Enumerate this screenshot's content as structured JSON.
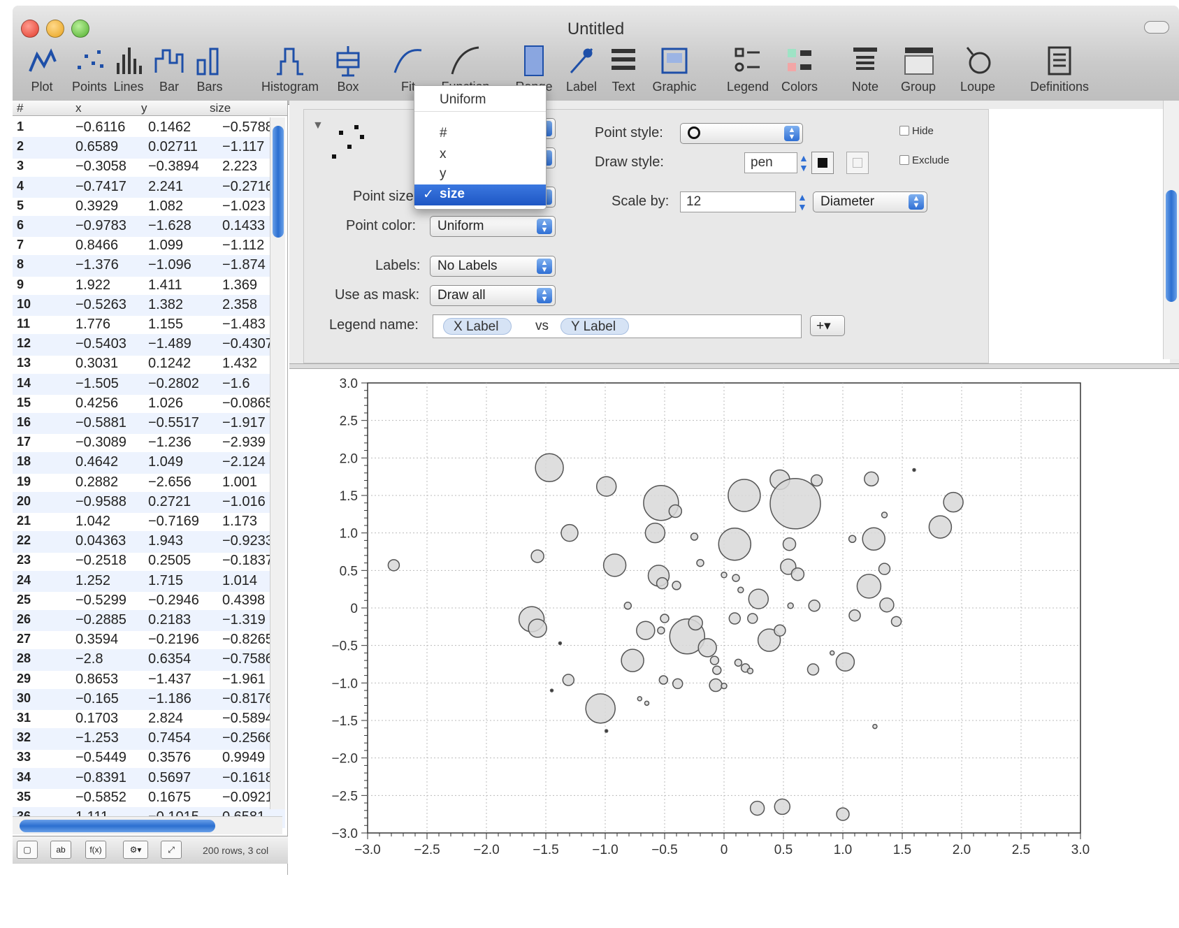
{
  "window": {
    "title": "Untitled"
  },
  "toolbar": {
    "items": [
      {
        "label": "Plot",
        "icon": "plot-icon"
      },
      {
        "label": "Points",
        "icon": "points-icon"
      },
      {
        "label": "Lines",
        "icon": "lines-icon"
      },
      {
        "label": "Bar",
        "icon": "bar-icon"
      },
      {
        "label": "Bars",
        "icon": "bars-icon"
      },
      {
        "label": "Histogram",
        "icon": "histogram-icon"
      },
      {
        "label": "Box",
        "icon": "box-icon"
      },
      {
        "label": "Fit",
        "icon": "fit-icon"
      },
      {
        "label": "Function",
        "icon": "function-icon"
      },
      {
        "label": "Range",
        "icon": "range-icon"
      },
      {
        "label": "Label",
        "icon": "label-icon"
      },
      {
        "label": "Text",
        "icon": "text-icon"
      },
      {
        "label": "Graphic",
        "icon": "graphic-icon"
      },
      {
        "label": "Legend",
        "icon": "legend-icon"
      },
      {
        "label": "Colors",
        "icon": "colors-icon"
      },
      {
        "label": "Note",
        "icon": "note-icon"
      },
      {
        "label": "Group",
        "icon": "group-icon"
      },
      {
        "label": "Loupe",
        "icon": "loupe-icon"
      },
      {
        "label": "Definitions",
        "icon": "definitions-icon"
      }
    ]
  },
  "table": {
    "columns": [
      "#",
      "x",
      "y",
      "size"
    ],
    "rows": [
      [
        "1",
        "-0.6116",
        "0.1462",
        "-0.5788"
      ],
      [
        "2",
        "0.6589",
        "0.02711",
        "-1.117"
      ],
      [
        "3",
        "-0.3058",
        "-0.3894",
        "2.223"
      ],
      [
        "4",
        "-0.7417",
        "2.241",
        "-0.2716"
      ],
      [
        "5",
        "0.3929",
        "1.082",
        "-1.023"
      ],
      [
        "6",
        "-0.9783",
        "-1.628",
        "0.1433"
      ],
      [
        "7",
        "0.8466",
        "1.099",
        "-1.112"
      ],
      [
        "8",
        "-1.376",
        "-1.096",
        "-1.874"
      ],
      [
        "9",
        "1.922",
        "1.411",
        "1.369"
      ],
      [
        "10",
        "-0.5263",
        "1.382",
        "2.358"
      ],
      [
        "11",
        "1.776",
        "1.155",
        "-1.483"
      ],
      [
        "12",
        "-0.5403",
        "-1.489",
        "-0.4307"
      ],
      [
        "13",
        "0.3031",
        "0.1242",
        "1.432"
      ],
      [
        "14",
        "-1.505",
        "-0.2802",
        "-1.6"
      ],
      [
        "15",
        "0.4256",
        "1.026",
        "-0.0865"
      ],
      [
        "16",
        "-0.5881",
        "-0.5517",
        "-1.917"
      ],
      [
        "17",
        "-0.3089",
        "-1.236",
        "-2.939"
      ],
      [
        "18",
        "0.4642",
        "1.049",
        "-2.124"
      ],
      [
        "19",
        "0.2882",
        "-2.656",
        "1.001"
      ],
      [
        "20",
        "-0.9588",
        "0.2721",
        "-1.016"
      ],
      [
        "21",
        "1.042",
        "-0.7169",
        "1.173"
      ],
      [
        "22",
        "0.04363",
        "1.943",
        "-0.9233"
      ],
      [
        "23",
        "-0.2518",
        "0.2505",
        "-0.1837"
      ],
      [
        "24",
        "1.252",
        "1.715",
        "1.014"
      ],
      [
        "25",
        "-0.5299",
        "-0.2946",
        "0.4398"
      ],
      [
        "26",
        "-0.2885",
        "0.2183",
        "-1.319"
      ],
      [
        "27",
        "0.3594",
        "-0.2196",
        "-0.8265"
      ],
      [
        "28",
        "-2.8",
        "0.6354",
        "-0.7586"
      ],
      [
        "29",
        "0.8653",
        "-1.437",
        "-1.961"
      ],
      [
        "30",
        "-0.165",
        "-1.186",
        "-0.8176"
      ],
      [
        "31",
        "0.1703",
        "2.824",
        "-0.5894"
      ],
      [
        "32",
        "-1.253",
        "0.7454",
        "-0.2566"
      ],
      [
        "33",
        "-0.5449",
        "0.3576",
        "0.9949"
      ],
      [
        "34",
        "-0.8391",
        "0.5697",
        "-0.1618"
      ],
      [
        "35",
        "-0.5852",
        "0.1675",
        "-0.0921"
      ],
      [
        "36",
        "1.111",
        "-0.1015",
        "0.6581"
      ]
    ],
    "footer": "200 rows, 3 col"
  },
  "inspector": {
    "point_style_label": "Point style:",
    "draw_style_label": "Draw style:",
    "draw_style_value": "pen",
    "hide_label": "Hide",
    "exclude_label": "Exclude",
    "point_size_label": "Point size",
    "scale_by_label": "Scale by:",
    "scale_by_value": "12",
    "scale_mode": "Diameter",
    "point_color_label": "Point color:",
    "point_color_value": "Uniform",
    "labels_label": "Labels:",
    "labels_value": "No Labels",
    "mask_label": "Use as mask:",
    "mask_value": "Draw all",
    "legend_label": "Legend name:",
    "legend_token_x": "X Label",
    "legend_vs": "vs",
    "legend_token_y": "Y Label",
    "add_button": "+▾"
  },
  "dropdown": {
    "options": [
      "Uniform",
      "#",
      "x",
      "y",
      "size"
    ],
    "selected": "size",
    "check": "✓"
  },
  "colors": {
    "accent": "#2f6fd4",
    "marker_fill": "#d8d8d8",
    "marker_stroke": "#555555"
  },
  "chart_data": {
    "type": "scatter",
    "xlim": [
      -3.0,
      3.0
    ],
    "ylim": [
      -3.0,
      3.0
    ],
    "xticks": [
      "-3.0",
      "-2.5",
      "-2.0",
      "-1.5",
      "-1.0",
      "-0.5",
      "0",
      "0.5",
      "1.0",
      "1.5",
      "2.0",
      "2.5",
      "3.0"
    ],
    "yticks": [
      "3.0",
      "2.5",
      "2.0",
      "1.5",
      "1.0",
      "0.5",
      "0",
      "-0.5",
      "-1.0",
      "-1.5",
      "-2.0",
      "-2.5",
      "-3.0"
    ],
    "grid": true,
    "size_variable": "size",
    "points": [
      {
        "x": -1.47,
        "y": 1.87,
        "r": 20
      },
      {
        "x": -0.99,
        "y": 1.62,
        "r": 14
      },
      {
        "x": -0.53,
        "y": 1.4,
        "r": 25
      },
      {
        "x": -0.41,
        "y": 1.29,
        "r": 9
      },
      {
        "x": 0.17,
        "y": 1.5,
        "r": 23
      },
      {
        "x": 0.47,
        "y": 1.71,
        "r": 14
      },
      {
        "x": 0.6,
        "y": 1.39,
        "r": 36
      },
      {
        "x": 0.78,
        "y": 1.7,
        "r": 8
      },
      {
        "x": 1.24,
        "y": 1.72,
        "r": 10
      },
      {
        "x": 1.6,
        "y": 1.84,
        "r": 2
      },
      {
        "x": 1.93,
        "y": 1.41,
        "r": 14
      },
      {
        "x": 1.82,
        "y": 1.08,
        "r": 16
      },
      {
        "x": 1.35,
        "y": 1.24,
        "r": 4
      },
      {
        "x": 1.26,
        "y": 0.92,
        "r": 16
      },
      {
        "x": 1.08,
        "y": 0.92,
        "r": 5
      },
      {
        "x": 1.35,
        "y": 0.52,
        "r": 8
      },
      {
        "x": 1.22,
        "y": 0.29,
        "r": 17
      },
      {
        "x": 1.37,
        "y": 0.04,
        "r": 10
      },
      {
        "x": 1.45,
        "y": -0.18,
        "r": 7
      },
      {
        "x": 1.1,
        "y": -0.1,
        "r": 8
      },
      {
        "x": 1.02,
        "y": -0.72,
        "r": 13
      },
      {
        "x": 0.91,
        "y": -0.6,
        "r": 3
      },
      {
        "x": 0.76,
        "y": 0.03,
        "r": 8
      },
      {
        "x": 0.56,
        "y": 0.03,
        "r": 4
      },
      {
        "x": 0.55,
        "y": 0.85,
        "r": 9
      },
      {
        "x": 0.54,
        "y": 0.55,
        "r": 11
      },
      {
        "x": 0.62,
        "y": 0.45,
        "r": 9
      },
      {
        "x": 0.09,
        "y": 0.85,
        "r": 23
      },
      {
        "x": -0.25,
        "y": 0.95,
        "r": 5
      },
      {
        "x": -0.58,
        "y": 1.0,
        "r": 14
      },
      {
        "x": -1.3,
        "y": 1.0,
        "r": 12
      },
      {
        "x": -1.57,
        "y": 0.69,
        "r": 9
      },
      {
        "x": -2.78,
        "y": 0.57,
        "r": 8
      },
      {
        "x": -0.92,
        "y": 0.57,
        "r": 16
      },
      {
        "x": -0.55,
        "y": 0.43,
        "r": 15
      },
      {
        "x": -0.52,
        "y": 0.33,
        "r": 8
      },
      {
        "x": -0.4,
        "y": 0.3,
        "r": 6
      },
      {
        "x": -0.2,
        "y": 0.6,
        "r": 5
      },
      {
        "x": 0.0,
        "y": 0.44,
        "r": 4
      },
      {
        "x": 0.1,
        "y": 0.4,
        "r": 5
      },
      {
        "x": 0.14,
        "y": 0.24,
        "r": 4
      },
      {
        "x": 0.29,
        "y": 0.12,
        "r": 14
      },
      {
        "x": -1.62,
        "y": -0.15,
        "r": 18
      },
      {
        "x": -1.57,
        "y": -0.27,
        "r": 13
      },
      {
        "x": -0.81,
        "y": 0.03,
        "r": 5
      },
      {
        "x": -0.66,
        "y": -0.3,
        "r": 13
      },
      {
        "x": -0.5,
        "y": -0.14,
        "r": 6
      },
      {
        "x": -0.53,
        "y": -0.3,
        "r": 5
      },
      {
        "x": -0.31,
        "y": -0.38,
        "r": 25
      },
      {
        "x": -0.24,
        "y": -0.2,
        "r": 10
      },
      {
        "x": -0.14,
        "y": -0.53,
        "r": 13
      },
      {
        "x": -0.08,
        "y": -0.7,
        "r": 6
      },
      {
        "x": -0.06,
        "y": -0.83,
        "r": 6
      },
      {
        "x": 0.09,
        "y": -0.14,
        "r": 8
      },
      {
        "x": 0.24,
        "y": -0.14,
        "r": 7
      },
      {
        "x": 0.38,
        "y": -0.43,
        "r": 16
      },
      {
        "x": 0.47,
        "y": -0.3,
        "r": 8
      },
      {
        "x": 0.12,
        "y": -0.73,
        "r": 5
      },
      {
        "x": 0.18,
        "y": -0.8,
        "r": 6
      },
      {
        "x": 0.22,
        "y": -0.84,
        "r": 4
      },
      {
        "x": -0.07,
        "y": -1.03,
        "r": 9
      },
      {
        "x": 0.0,
        "y": -1.04,
        "r": 4
      },
      {
        "x": -0.39,
        "y": -1.01,
        "r": 7
      },
      {
        "x": -0.51,
        "y": -0.96,
        "r": 6
      },
      {
        "x": -0.77,
        "y": -0.7,
        "r": 16
      },
      {
        "x": -1.31,
        "y": -0.96,
        "r": 8
      },
      {
        "x": -1.04,
        "y": -1.34,
        "r": 21
      },
      {
        "x": -0.71,
        "y": -1.21,
        "r": 3
      },
      {
        "x": -0.65,
        "y": -1.27,
        "r": 3
      },
      {
        "x": 0.75,
        "y": -0.82,
        "r": 8
      },
      {
        "x": 0.28,
        "y": -2.67,
        "r": 10
      },
      {
        "x": 0.49,
        "y": -2.65,
        "r": 11
      },
      {
        "x": 1.0,
        "y": -2.75,
        "r": 9
      },
      {
        "x": 1.27,
        "y": -1.58,
        "r": 3
      },
      {
        "x": -0.99,
        "y": -1.64,
        "r": 2
      },
      {
        "x": -1.45,
        "y": -1.1,
        "r": 2
      },
      {
        "x": -1.38,
        "y": -0.47,
        "r": 2
      }
    ]
  }
}
